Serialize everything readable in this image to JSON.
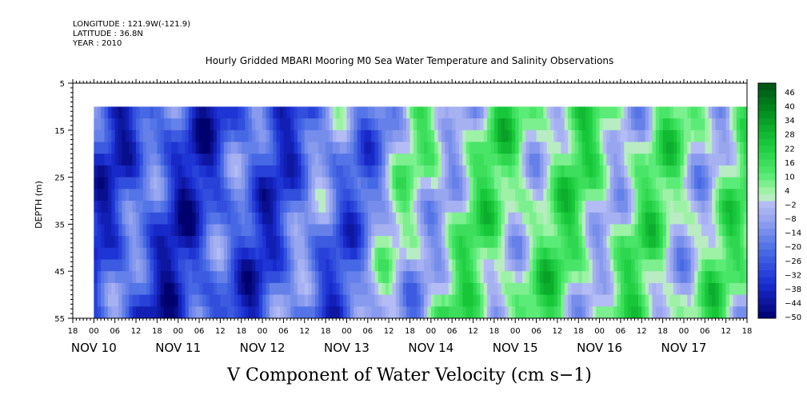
{
  "header": {
    "longitude": "LONGITUDE : 121.9W(-121.9)",
    "latitude": "LATITUDE : 36.8N",
    "year": "YEAR : 2010"
  },
  "chart_data": {
    "type": "heatmap",
    "title": "Hourly Gridded MBARI Mooring M0 Sea Water Temperature and Salinity Observations",
    "xlabel": "V Component of Water Velocity (cm s−1)",
    "ylabel": "DEPTH (m)",
    "y_ticks": [
      "5",
      "15",
      "25",
      "35",
      "45",
      "55"
    ],
    "ylim": [
      55,
      5
    ],
    "data_depth_range": [
      10,
      55
    ],
    "x_hour_ticks": [
      "18",
      "00",
      "06",
      "12",
      "18",
      "00",
      "06",
      "12",
      "18",
      "00",
      "06",
      "12",
      "18",
      "00",
      "06",
      "12",
      "18",
      "00",
      "06",
      "12",
      "18",
      "00",
      "06",
      "12",
      "18",
      "00",
      "06",
      "12",
      "18",
      "00",
      "06",
      "12",
      "18"
    ],
    "x_day_labels": [
      "NOV 10",
      "NOV 11",
      "NOV 12",
      "NOV 13",
      "NOV 14",
      "NOV 15",
      "NOV 16",
      "NOV 17"
    ],
    "xlim": [
      "2010-11-09T18:00",
      "2010-11-17T18:00"
    ],
    "data_time_range": [
      "2010-11-10T00:00",
      "2010-11-17T18:00"
    ],
    "colorbar": {
      "labels": [
        "46",
        "40",
        "34",
        "28",
        "22",
        "16",
        "10",
        "4",
        "−2",
        "−8",
        "−14",
        "−20",
        "−26",
        "−32",
        "−38",
        "−44",
        "−50"
      ],
      "min": -50,
      "max": 52,
      "step": 3
    },
    "velocity_profile_by_day": [
      {
        "day": "NOV 10",
        "v": -25
      },
      {
        "day": "NOV 11",
        "v": -30
      },
      {
        "day": "NOV 12",
        "v": -25
      },
      {
        "day": "NOV 13",
        "v": -18
      },
      {
        "day": "NOV 14",
        "v": 4
      },
      {
        "day": "NOV 15",
        "v": 10
      },
      {
        "day": "NOV 16",
        "v": 8
      },
      {
        "day": "NOV 17",
        "v": 6
      }
    ],
    "grid": false
  }
}
